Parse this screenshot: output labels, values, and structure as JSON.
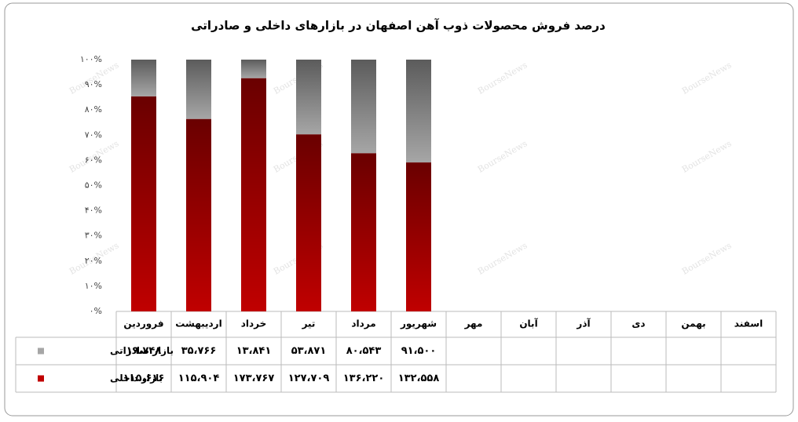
{
  "chart_data": {
    "type": "bar",
    "stacked": "percent",
    "title": "درصد فروش محصولات ذوب آهن اصفهان در بازارهای داخلی و صادراتی",
    "watermark": "BourseNews",
    "categories": [
      "فروردین",
      "اردیبهشت",
      "خرداد",
      "تیر",
      "مرداد",
      "شهریور",
      "مهر",
      "آبان",
      "آذر",
      "دی",
      "بهمن",
      "اسفند"
    ],
    "series": [
      {
        "name": "بازار صادراتی",
        "color": "#a6a6a6",
        "values": [
          19748,
          35766,
          13841,
          53871,
          80543,
          91500,
          null,
          null,
          null,
          null,
          null,
          null
        ],
        "value_labels": [
          "۱۹،۷۴۸",
          "۳۵،۷۶۶",
          "۱۳،۸۴۱",
          "۵۳،۸۷۱",
          "۸۰،۵۴۳",
          "۹۱،۵۰۰",
          null,
          null,
          null,
          null,
          null,
          null
        ]
      },
      {
        "name": "بازار داخلی",
        "color": "#c00000",
        "values": [
          115616,
          115904,
          173767,
          127709,
          136220,
          132558,
          null,
          null,
          null,
          null,
          null,
          null
        ],
        "value_labels": [
          "۱۱۵،۶۱۶",
          "۱۱۵،۹۰۴",
          "۱۷۳،۷۶۷",
          "۱۲۷،۷۰۹",
          "۱۳۶،۲۲۰",
          "۱۳۲،۵۵۸",
          null,
          null,
          null,
          null,
          null,
          null
        ]
      }
    ],
    "ylim": [
      0,
      100
    ],
    "yticks": [
      {
        "value": 0,
        "label": "۰%"
      },
      {
        "value": 10,
        "label": "۱۰%"
      },
      {
        "value": 20,
        "label": "۲۰%"
      },
      {
        "value": 30,
        "label": "۳۰%"
      },
      {
        "value": 40,
        "label": "۴۰%"
      },
      {
        "value": 50,
        "label": "۵۰%"
      },
      {
        "value": 60,
        "label": "۶۰%"
      },
      {
        "value": 70,
        "label": "۷۰%"
      },
      {
        "value": 80,
        "label": "۸۰%"
      },
      {
        "value": 90,
        "label": "۹۰%"
      },
      {
        "value": 100,
        "label": "۱۰۰%"
      }
    ],
    "grid": false
  }
}
